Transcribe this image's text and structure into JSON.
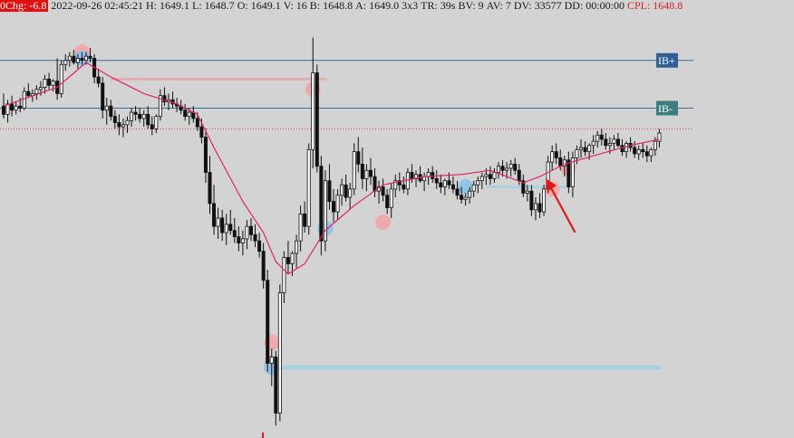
{
  "header": {
    "change": "0Chg: -6.8",
    "datetime": "2022-09-26 02:45:21",
    "high": "H: 1649.1",
    "low": "L: 1648.7",
    "open": "O: 1649.1",
    "volume": "V: 16",
    "bid": "B: 1648.8",
    "ask": "A: 1649.0",
    "bar_type": "3x3",
    "timer": "TR: 39s",
    "bid_volume": "BV: 9",
    "ask_volume": "AV: 7",
    "delta_volume": "DV: 33577",
    "drawdown": "DD: 00:00:00",
    "cpl": "CPL: 1648.8"
  },
  "colors": {
    "background": "#d3d3d3",
    "candle": "#111111",
    "moving_average": "#e0226e",
    "ib_line": "#3b6e96",
    "ib_plus_label": "#2f5f95",
    "ib_minus_label": "#3a7f7e",
    "cpl_line": "#d05050",
    "sell_marker": "#f2a6a6",
    "buy_marker": "#8fc1e8",
    "level_line": "#a9cfe3",
    "arrow": "#e01818"
  },
  "chart_data": {
    "type": "candlestick",
    "ylim": [
      1634.0,
      1654.5
    ],
    "candles": [
      [
        1650.0,
        1650.6,
        1649.4,
        1649.6
      ],
      [
        1649.6,
        1650.3,
        1649.2,
        1650.1
      ],
      [
        1650.1,
        1650.5,
        1649.5,
        1649.8
      ],
      [
        1649.8,
        1650.2,
        1649.6,
        1650.0
      ],
      [
        1650.0,
        1650.4,
        1649.7,
        1649.9
      ],
      [
        1649.9,
        1650.9,
        1649.8,
        1650.7
      ],
      [
        1650.7,
        1651.1,
        1650.4,
        1650.5
      ],
      [
        1650.5,
        1650.8,
        1650.2,
        1650.6
      ],
      [
        1650.6,
        1651.0,
        1650.3,
        1650.8
      ],
      [
        1650.8,
        1651.2,
        1650.5,
        1650.9
      ],
      [
        1650.9,
        1651.5,
        1650.6,
        1651.3
      ],
      [
        1651.3,
        1651.6,
        1650.8,
        1651.0
      ],
      [
        1651.0,
        1651.3,
        1650.7,
        1651.2
      ],
      [
        1651.2,
        1652.3,
        1650.3,
        1650.6
      ],
      [
        1650.6,
        1652.2,
        1650.4,
        1652.0
      ],
      [
        1652.0,
        1652.5,
        1651.7,
        1652.2
      ],
      [
        1652.2,
        1652.6,
        1651.9,
        1652.4
      ],
      [
        1652.4,
        1652.7,
        1652.0,
        1652.1
      ],
      [
        1652.1,
        1652.5,
        1651.8,
        1652.3
      ],
      [
        1652.3,
        1652.6,
        1652.0,
        1652.2
      ],
      [
        1652.2,
        1652.6,
        1652.0,
        1652.4
      ],
      [
        1652.4,
        1652.8,
        1652.1,
        1652.3
      ],
      [
        1652.3,
        1652.5,
        1651.1,
        1651.4
      ],
      [
        1651.4,
        1651.8,
        1650.9,
        1651.1
      ],
      [
        1651.1,
        1651.4,
        1649.4,
        1649.8
      ],
      [
        1649.8,
        1650.4,
        1649.1,
        1650.0
      ],
      [
        1650.0,
        1650.3,
        1649.3,
        1649.5
      ],
      [
        1649.5,
        1649.8,
        1648.9,
        1649.2
      ],
      [
        1649.2,
        1649.6,
        1648.6,
        1649.0
      ],
      [
        1649.0,
        1649.4,
        1648.5,
        1649.1
      ],
      [
        1649.1,
        1649.5,
        1648.7,
        1649.3
      ],
      [
        1649.3,
        1649.9,
        1649.0,
        1649.7
      ],
      [
        1649.7,
        1650.0,
        1649.3,
        1649.6
      ],
      [
        1649.6,
        1649.9,
        1649.2,
        1649.4
      ],
      [
        1649.4,
        1649.8,
        1649.0,
        1649.6
      ],
      [
        1649.6,
        1650.0,
        1648.9,
        1649.1
      ],
      [
        1649.1,
        1649.5,
        1648.6,
        1648.9
      ],
      [
        1648.9,
        1649.6,
        1648.7,
        1649.5
      ],
      [
        1649.5,
        1650.8,
        1649.3,
        1650.5
      ],
      [
        1650.5,
        1650.9,
        1650.0,
        1650.2
      ],
      [
        1650.2,
        1650.6,
        1649.8,
        1650.3
      ],
      [
        1650.3,
        1650.7,
        1649.9,
        1650.1
      ],
      [
        1650.1,
        1650.4,
        1649.7,
        1650.0
      ],
      [
        1650.0,
        1650.3,
        1649.6,
        1649.8
      ],
      [
        1649.8,
        1650.1,
        1649.3,
        1649.5
      ],
      [
        1649.5,
        1649.9,
        1649.1,
        1649.7
      ],
      [
        1649.7,
        1650.0,
        1649.2,
        1649.4
      ],
      [
        1649.4,
        1649.7,
        1648.8,
        1649.0
      ],
      [
        1649.0,
        1649.4,
        1648.2,
        1648.5
      ],
      [
        1648.5,
        1648.9,
        1646.3,
        1646.8
      ],
      [
        1646.8,
        1647.6,
        1644.8,
        1645.3
      ],
      [
        1645.3,
        1646.2,
        1643.8,
        1644.2
      ],
      [
        1644.2,
        1645.1,
        1643.6,
        1644.6
      ],
      [
        1644.6,
        1645.0,
        1643.5,
        1643.9
      ],
      [
        1643.9,
        1644.8,
        1643.3,
        1644.3
      ],
      [
        1644.3,
        1645.0,
        1643.8,
        1644.0
      ],
      [
        1644.0,
        1644.6,
        1643.4,
        1643.7
      ],
      [
        1643.7,
        1644.2,
        1643.0,
        1643.4
      ],
      [
        1643.4,
        1644.0,
        1642.8,
        1643.6
      ],
      [
        1643.6,
        1644.5,
        1643.1,
        1644.2
      ],
      [
        1644.2,
        1644.6,
        1643.5,
        1643.8
      ],
      [
        1643.8,
        1644.3,
        1643.2,
        1643.5
      ],
      [
        1643.5,
        1643.9,
        1642.7,
        1643.0
      ],
      [
        1643.0,
        1643.4,
        1641.2,
        1641.6
      ],
      [
        1641.6,
        1642.1,
        1637.2,
        1637.6
      ],
      [
        1637.6,
        1638.3,
        1636.5,
        1637.9
      ],
      [
        1637.9,
        1638.2,
        1634.6,
        1635.2
      ],
      [
        1635.2,
        1641.4,
        1634.8,
        1641.0
      ],
      [
        1641.0,
        1643.0,
        1640.5,
        1642.7
      ],
      [
        1642.7,
        1643.5,
        1641.9,
        1642.4
      ],
      [
        1642.4,
        1643.0,
        1641.8,
        1642.9
      ],
      [
        1642.9,
        1643.8,
        1642.2,
        1643.5
      ],
      [
        1643.5,
        1645.2,
        1643.0,
        1644.8
      ],
      [
        1644.8,
        1645.4,
        1643.9,
        1644.2
      ],
      [
        1644.2,
        1648.2,
        1643.8,
        1647.9
      ],
      [
        1647.9,
        1653.3,
        1647.0,
        1651.6
      ],
      [
        1651.6,
        1652.0,
        1646.8,
        1647.1
      ],
      [
        1647.1,
        1647.6,
        1642.8,
        1643.5
      ],
      [
        1643.5,
        1646.9,
        1643.0,
        1646.4
      ],
      [
        1646.4,
        1647.2,
        1645.0,
        1645.4
      ],
      [
        1645.4,
        1646.0,
        1644.4,
        1644.9
      ],
      [
        1644.9,
        1646.0,
        1644.5,
        1645.7
      ],
      [
        1645.7,
        1646.5,
        1645.2,
        1646.2
      ],
      [
        1646.2,
        1646.7,
        1645.4,
        1645.6
      ],
      [
        1645.6,
        1646.3,
        1645.0,
        1646.0
      ],
      [
        1646.0,
        1648.2,
        1645.7,
        1647.8
      ],
      [
        1647.8,
        1648.5,
        1646.8,
        1647.2
      ],
      [
        1647.2,
        1648.0,
        1646.0,
        1646.5
      ],
      [
        1646.5,
        1647.2,
        1645.9,
        1646.9
      ],
      [
        1646.9,
        1647.5,
        1646.2,
        1646.6
      ],
      [
        1646.6,
        1647.0,
        1645.6,
        1645.9
      ],
      [
        1645.9,
        1646.4,
        1645.3,
        1646.1
      ],
      [
        1646.1,
        1646.5,
        1645.4,
        1645.7
      ],
      [
        1645.7,
        1646.0,
        1644.8,
        1645.1
      ],
      [
        1645.1,
        1646.3,
        1644.6,
        1646.0
      ],
      [
        1646.0,
        1646.7,
        1645.6,
        1646.4
      ],
      [
        1646.4,
        1646.8,
        1645.9,
        1646.2
      ],
      [
        1646.2,
        1646.6,
        1645.8,
        1646.0
      ],
      [
        1646.0,
        1647.0,
        1645.7,
        1646.8
      ],
      [
        1646.8,
        1647.2,
        1646.3,
        1646.5
      ],
      [
        1646.5,
        1646.9,
        1646.1,
        1646.7
      ],
      [
        1646.7,
        1647.1,
        1646.3,
        1646.4
      ],
      [
        1646.4,
        1646.8,
        1645.9,
        1646.6
      ],
      [
        1646.6,
        1647.0,
        1646.2,
        1646.8
      ],
      [
        1646.8,
        1647.1,
        1646.3,
        1646.5
      ],
      [
        1646.5,
        1646.9,
        1646.0,
        1646.3
      ],
      [
        1646.3,
        1646.7,
        1645.8,
        1646.1
      ],
      [
        1646.1,
        1646.5,
        1645.7,
        1646.4
      ],
      [
        1646.4,
        1646.8,
        1646.0,
        1646.2
      ],
      [
        1646.2,
        1646.6,
        1645.8,
        1646.0
      ],
      [
        1646.0,
        1646.4,
        1645.5,
        1645.7
      ],
      [
        1645.7,
        1646.1,
        1645.3,
        1645.5
      ],
      [
        1645.5,
        1645.8,
        1645.2,
        1645.6
      ],
      [
        1645.6,
        1646.1,
        1645.3,
        1645.9
      ],
      [
        1645.9,
        1646.4,
        1645.6,
        1646.2
      ],
      [
        1646.2,
        1646.6,
        1645.8,
        1646.4
      ],
      [
        1646.4,
        1646.8,
        1646.0,
        1646.6
      ],
      [
        1646.6,
        1647.0,
        1646.2,
        1646.7
      ],
      [
        1646.7,
        1647.1,
        1646.2,
        1646.5
      ],
      [
        1646.5,
        1647.0,
        1646.3,
        1646.8
      ],
      [
        1646.8,
        1647.3,
        1646.5,
        1647.1
      ],
      [
        1647.1,
        1647.4,
        1646.6,
        1646.9
      ],
      [
        1646.9,
        1647.3,
        1646.5,
        1647.0
      ],
      [
        1647.0,
        1647.4,
        1646.6,
        1647.2
      ],
      [
        1647.2,
        1647.5,
        1646.7,
        1646.9
      ],
      [
        1646.9,
        1647.2,
        1646.2,
        1646.4
      ],
      [
        1646.4,
        1646.7,
        1645.6,
        1645.8
      ],
      [
        1645.8,
        1646.2,
        1645.4,
        1645.9
      ],
      [
        1645.9,
        1646.2,
        1644.7,
        1645.0
      ],
      [
        1645.0,
        1645.6,
        1644.5,
        1645.3
      ],
      [
        1645.3,
        1645.8,
        1644.6,
        1644.9
      ],
      [
        1644.9,
        1646.2,
        1644.7,
        1646.0
      ],
      [
        1646.0,
        1647.6,
        1645.8,
        1647.3
      ],
      [
        1647.3,
        1648.1,
        1646.9,
        1647.8
      ],
      [
        1647.8,
        1648.2,
        1647.2,
        1647.5
      ],
      [
        1647.5,
        1647.9,
        1646.9,
        1647.1
      ],
      [
        1647.1,
        1647.6,
        1646.6,
        1647.4
      ],
      [
        1647.4,
        1647.8,
        1645.8,
        1646.1
      ],
      [
        1646.1,
        1647.8,
        1645.6,
        1647.5
      ],
      [
        1647.5,
        1648.1,
        1647.2,
        1647.9
      ],
      [
        1647.9,
        1648.4,
        1647.5,
        1648.0
      ],
      [
        1648.0,
        1648.3,
        1647.6,
        1647.8
      ],
      [
        1647.8,
        1648.2,
        1647.4,
        1648.1
      ],
      [
        1648.1,
        1648.6,
        1647.7,
        1648.3
      ],
      [
        1648.3,
        1648.8,
        1648.0,
        1648.6
      ],
      [
        1648.6,
        1648.9,
        1648.1,
        1648.4
      ],
      [
        1648.4,
        1648.7,
        1647.9,
        1648.1
      ],
      [
        1648.1,
        1648.5,
        1647.7,
        1648.2
      ],
      [
        1648.2,
        1648.6,
        1647.9,
        1648.4
      ],
      [
        1648.4,
        1648.7,
        1648.0,
        1648.1
      ],
      [
        1648.1,
        1648.4,
        1647.6,
        1647.8
      ],
      [
        1647.8,
        1648.3,
        1647.5,
        1648.2
      ],
      [
        1648.2,
        1648.5,
        1647.8,
        1648.0
      ],
      [
        1648.0,
        1648.3,
        1647.5,
        1647.7
      ],
      [
        1647.7,
        1648.1,
        1647.4,
        1647.9
      ],
      [
        1647.9,
        1648.2,
        1647.5,
        1647.8
      ],
      [
        1647.8,
        1648.1,
        1647.3,
        1647.6
      ],
      [
        1647.6,
        1648.0,
        1647.3,
        1647.9
      ],
      [
        1647.9,
        1648.5,
        1647.6,
        1648.3
      ],
      [
        1648.3,
        1648.9,
        1648.0,
        1648.7
      ]
    ],
    "moving_average": [
      [
        0,
        1650.0
      ],
      [
        13,
        1650.9
      ],
      [
        20,
        1652.1
      ],
      [
        26,
        1651.4
      ],
      [
        34,
        1650.6
      ],
      [
        42,
        1650.1
      ],
      [
        47,
        1649.6
      ],
      [
        51,
        1648.0
      ],
      [
        58,
        1645.4
      ],
      [
        63,
        1643.9
      ],
      [
        66,
        1642.5
      ],
      [
        69,
        1641.9
      ],
      [
        73,
        1642.4
      ],
      [
        78,
        1644.0
      ],
      [
        85,
        1645.2
      ],
      [
        92,
        1646.2
      ],
      [
        102,
        1646.6
      ],
      [
        111,
        1646.7
      ],
      [
        118,
        1646.9
      ],
      [
        122,
        1646.6
      ],
      [
        126,
        1646.3
      ],
      [
        130,
        1646.6
      ],
      [
        136,
        1647.2
      ],
      [
        143,
        1647.6
      ],
      [
        152,
        1648.1
      ],
      [
        159,
        1648.4
      ]
    ],
    "levels": [
      {
        "label": "IB+",
        "price": 1652.2
      },
      {
        "label": "IB-",
        "price": 1649.9
      },
      {
        "label": "",
        "price": 1648.9,
        "style": "dotted"
      }
    ],
    "value_lines": [
      {
        "price": 1651.3,
        "from": 26,
        "to": 78,
        "side": "sell"
      },
      {
        "price": 1646.1,
        "from": 117,
        "to": 136,
        "side": "buy"
      },
      {
        "price": 1637.4,
        "from": 66,
        "to": 159,
        "side": "buy"
      }
    ],
    "sell_markers": [
      [
        19,
        1652.6
      ],
      [
        75,
        1650.8
      ],
      [
        92,
        1644.4
      ],
      [
        65,
        1638.6
      ],
      [
        65,
        1637.6
      ],
      [
        133,
        1646.0
      ],
      [
        137,
        1647.0
      ]
    ],
    "buy_markers": [
      [
        19,
        1652.3
      ],
      [
        78,
        1644.1
      ],
      [
        112,
        1646.1
      ],
      [
        65,
        1637.4
      ]
    ]
  }
}
